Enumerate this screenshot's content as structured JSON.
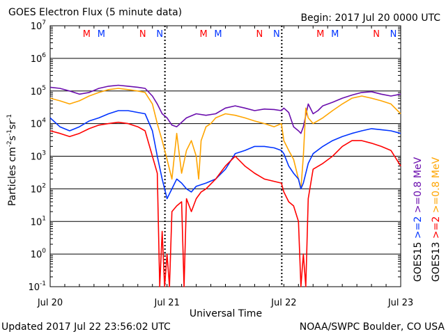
{
  "header": {
    "title": "GOES Electron Flux (5 minute data)",
    "begin": "Begin: 2017 Jul 20 0000 UTC"
  },
  "footer": {
    "updated": "Updated 2017 Jul 22 23:56:02 UTC",
    "source": "NOAA/SWPC Boulder, CO USA"
  },
  "colors": {
    "goes13_08": "#ffa500",
    "goes13_2": "#ff0000",
    "goes15_08": "#6a0dad",
    "goes15_2": "#0033ff",
    "marker_m_goes13": "#ff0000",
    "marker_m_goes15": "#0033ff"
  },
  "chart_data": {
    "type": "line",
    "title": "GOES Electron Flux (5 minute data)",
    "xlabel": "Universal Time",
    "ylabel": "Particles cm-2s-1sr-1",
    "y_scale": "log",
    "ylim": [
      0.1,
      10000000
    ],
    "xlim": [
      "2017 Jul 20 0000",
      "2017 Jul 23 0000"
    ],
    "x_tick_labels": [
      "Jul 20",
      "Jul 21",
      "Jul 22",
      "Jul 23"
    ],
    "y_tick_exponents": [
      -1,
      0,
      1,
      2,
      3,
      4,
      5,
      6,
      7
    ],
    "threshold": 1000,
    "day_markers": [
      {
        "day": "Jul 20",
        "labels": [
          {
            "t": "M",
            "sat": "GOES13"
          },
          {
            "t": "M",
            "sat": "GOES15"
          },
          {
            "t": "N",
            "sat": "GOES13"
          },
          {
            "t": "N",
            "sat": "GOES15"
          }
        ]
      },
      {
        "day": "Jul 21",
        "labels": [
          {
            "t": "M",
            "sat": "GOES13"
          },
          {
            "t": "M",
            "sat": "GOES15"
          },
          {
            "t": "N",
            "sat": "GOES13"
          },
          {
            "t": "N",
            "sat": "GOES15"
          }
        ]
      },
      {
        "day": "Jul 22",
        "labels": [
          {
            "t": "M",
            "sat": "GOES13"
          },
          {
            "t": "M",
            "sat": "GOES15"
          },
          {
            "t": "N",
            "sat": "GOES13"
          },
          {
            "t": "N",
            "sat": "GOES15"
          }
        ]
      }
    ],
    "legend": [
      {
        "satellite": "GOES15",
        "labels": [
          ">=2",
          ">=0.8 MeV"
        ],
        "colors": [
          "#0033ff",
          "#6a0dad"
        ]
      },
      {
        "satellite": "GOES13",
        "labels": [
          ">=2",
          ">=0.8 MeV"
        ],
        "colors": [
          "#ff0000",
          "#ffa500"
        ]
      }
    ],
    "series": [
      {
        "name": "GOES15 >=0.8 MeV",
        "color": "#6a0dad",
        "x_hours": [
          0,
          2,
          4,
          6,
          8,
          10,
          12,
          14,
          16,
          18,
          19.5,
          21,
          22,
          23,
          24,
          25,
          26,
          28,
          30,
          32,
          34,
          36,
          38,
          40,
          42,
          44,
          46,
          47.5,
          48,
          49,
          50,
          51,
          51.5,
          52,
          53,
          54,
          55,
          56,
          58,
          60,
          62,
          64,
          66,
          68,
          70,
          72
        ],
        "y": [
          130000,
          120000,
          100000,
          80000,
          90000,
          120000,
          140000,
          150000,
          140000,
          130000,
          120000,
          70000,
          40000,
          20000,
          15000,
          9000,
          8000,
          15000,
          20000,
          18000,
          20000,
          30000,
          35000,
          30000,
          25000,
          28000,
          27000,
          25000,
          30000,
          22000,
          8000,
          6000,
          5000,
          8000,
          40000,
          20000,
          25000,
          35000,
          45000,
          60000,
          75000,
          90000,
          95000,
          80000,
          70000,
          80000
        ]
      },
      {
        "name": "GOES13 >=0.8 MeV",
        "color": "#ffa500",
        "x_hours": [
          0,
          2,
          4,
          6,
          8,
          10,
          12,
          14,
          16,
          18,
          19.5,
          21,
          22,
          23,
          24,
          25,
          26,
          27,
          28,
          29,
          30,
          30.5,
          31,
          32,
          33,
          34,
          36,
          38,
          40,
          42,
          44,
          46,
          47.5,
          48,
          49,
          50,
          51,
          51.5,
          52,
          52.5,
          53,
          54,
          56,
          58,
          60,
          62,
          64,
          66,
          68,
          70,
          72
        ],
        "y": [
          60000,
          50000,
          40000,
          50000,
          70000,
          90000,
          110000,
          120000,
          110000,
          100000,
          90000,
          40000,
          10000,
          3000,
          800,
          200,
          5000,
          300,
          1500,
          3000,
          1000,
          200,
          3000,
          8000,
          10000,
          15000,
          20000,
          18000,
          15000,
          12000,
          10000,
          8000,
          10000,
          3000,
          1500,
          800,
          200,
          100,
          1000,
          30000,
          15000,
          10000,
          15000,
          25000,
          40000,
          60000,
          70000,
          60000,
          50000,
          40000,
          20000
        ]
      },
      {
        "name": "GOES15 >=2 MeV",
        "color": "#0033ff",
        "x_hours": [
          0,
          2,
          4,
          6,
          8,
          10,
          12,
          14,
          16,
          18,
          19.5,
          21,
          22,
          23,
          24,
          25,
          26,
          27,
          28,
          29,
          30,
          32,
          34,
          36,
          38,
          40,
          42,
          44,
          46,
          47.5,
          48,
          49,
          50,
          51,
          51.5,
          52,
          53,
          54,
          56,
          58,
          60,
          62,
          64,
          66,
          68,
          70,
          72
        ],
        "y": [
          15000,
          8000,
          6000,
          8000,
          12000,
          15000,
          20000,
          25000,
          25000,
          22000,
          20000,
          6000,
          1000,
          200,
          50,
          100,
          200,
          150,
          100,
          80,
          120,
          150,
          200,
          400,
          1200,
          1500,
          2000,
          2000,
          1800,
          1500,
          1200,
          500,
          300,
          200,
          100,
          150,
          600,
          1200,
          2000,
          3000,
          4000,
          5000,
          6000,
          7000,
          6500,
          6000,
          5000
        ]
      },
      {
        "name": "GOES13 >=2 MeV",
        "color": "#ff0000",
        "x_hours": [
          0,
          2,
          4,
          6,
          8,
          10,
          12,
          14,
          16,
          18,
          19.5,
          21,
          22,
          22.5,
          23,
          23.5,
          24,
          24.5,
          25,
          26,
          27,
          27.5,
          28,
          29,
          30,
          31,
          32,
          34,
          36,
          38,
          40,
          42,
          44,
          47.5,
          48,
          49,
          50,
          51,
          51.5,
          52,
          52.5,
          53,
          54,
          56,
          58,
          60,
          62,
          64,
          66,
          68,
          70,
          72
        ],
        "y": [
          6000,
          5000,
          4000,
          5000,
          7000,
          9000,
          10000,
          11000,
          10000,
          8000,
          6000,
          1000,
          300,
          0.1,
          5,
          0.1,
          1,
          0.1,
          20,
          30,
          40,
          0.1,
          50,
          20,
          50,
          80,
          100,
          200,
          500,
          1000,
          500,
          300,
          200,
          150,
          80,
          40,
          30,
          10,
          0.1,
          1,
          0.1,
          50,
          400,
          600,
          1000,
          2000,
          3000,
          3000,
          2500,
          2000,
          1500,
          500
        ]
      }
    ]
  }
}
